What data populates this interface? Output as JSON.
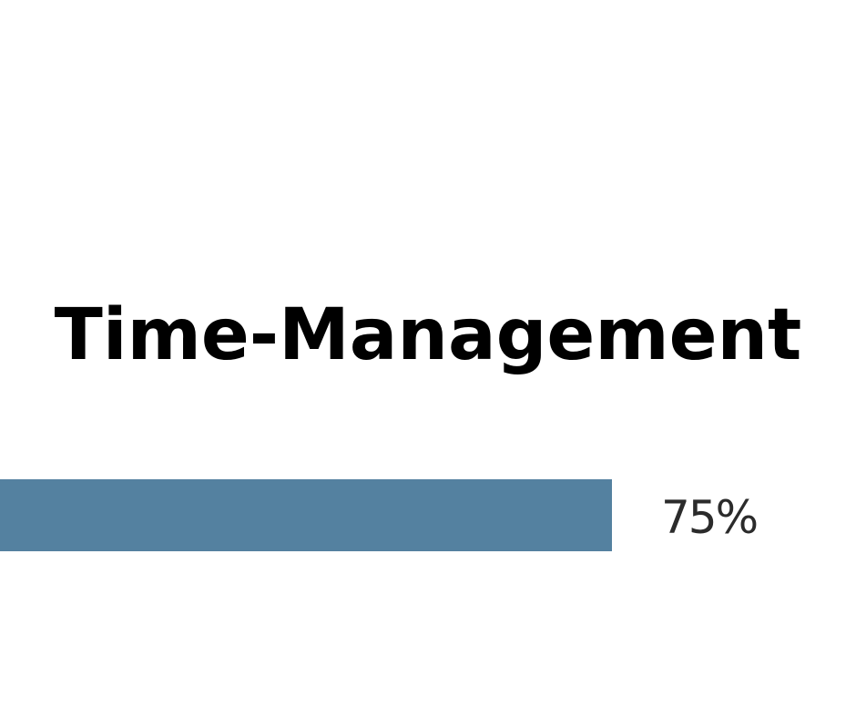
{
  "skill": {
    "title": "Time-Management",
    "percent_label": "75%",
    "level": 0.75,
    "bar_color": "#5481a0",
    "title_color": "#000000",
    "percent_color": "#2b2b2b"
  }
}
